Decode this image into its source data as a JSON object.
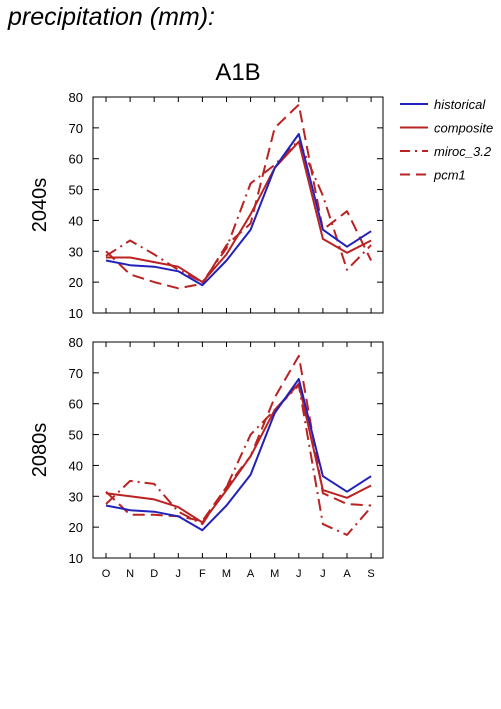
{
  "page_title": "precipitation (mm):",
  "chart_data": {
    "type": "line",
    "scenario_title": "A1B",
    "categories": [
      "O",
      "N",
      "D",
      "J",
      "F",
      "M",
      "A",
      "M",
      "J",
      "J",
      "A",
      "S"
    ],
    "ylim": [
      10,
      80
    ],
    "yticks": [
      10,
      20,
      30,
      40,
      50,
      60,
      70,
      80
    ],
    "legend_placement": "right",
    "legend": [
      {
        "name": "historical",
        "color": "#2222bb",
        "dash": "solid"
      },
      {
        "name": "composite",
        "color": "#bb2222",
        "dash": "solid"
      },
      {
        "name": "miroc_3.2",
        "color": "#bb2222",
        "dash": "dashdot"
      },
      {
        "name": "pcm1",
        "color": "#bb2222",
        "dash": "dashed"
      }
    ],
    "panels": [
      {
        "label": "2040s",
        "series": [
          {
            "name": "historical",
            "values": [
              27,
              25.5,
              25,
              23.5,
              19,
              27,
              37,
              57,
              68,
              37,
              31.5,
              36.5
            ]
          },
          {
            "name": "composite",
            "values": [
              28,
              28,
              26.5,
              25,
              20,
              29,
              42,
              57,
              65.5,
              34,
              29.5,
              33.5
            ]
          },
          {
            "name": "miroc_3.2",
            "values": [
              28.5,
              33.5,
              29,
              24,
              20,
              31,
              52,
              58,
              66,
              48,
              24,
              32
            ]
          },
          {
            "name": "pcm1",
            "values": [
              30,
              22.5,
              20,
              18,
              19.5,
              32,
              39,
              70,
              77.5,
              37,
              43,
              27
            ]
          }
        ]
      },
      {
        "label": "2080s",
        "series": [
          {
            "name": "historical",
            "values": [
              27,
              25.5,
              25,
              23.5,
              19,
              27,
              37,
              57,
              68,
              36.5,
              31.5,
              36.5
            ]
          },
          {
            "name": "composite",
            "values": [
              31,
              30,
              29,
              26.5,
              21.5,
              32,
              43,
              58,
              66.5,
              32,
              29.5,
              33.5
            ]
          },
          {
            "name": "miroc_3.2",
            "values": [
              27.5,
              35,
              34,
              25,
              21,
              33,
              50,
              58,
              66,
              21,
              17.5,
              26.5
            ]
          },
          {
            "name": "pcm1",
            "values": [
              31.5,
              24,
              24,
              23.5,
              22,
              33,
              43,
              62,
              75.5,
              31,
              27.5,
              27
            ]
          }
        ]
      }
    ]
  }
}
